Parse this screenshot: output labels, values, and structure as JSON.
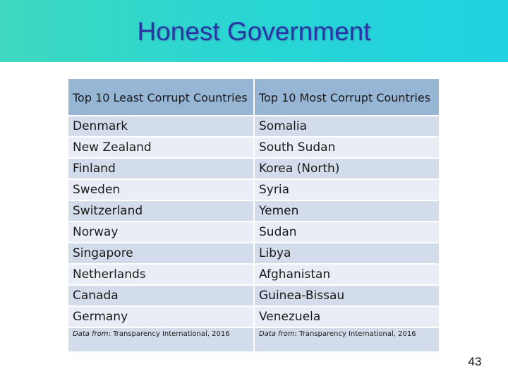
{
  "slide": {
    "title": "Honest Government",
    "page_number": "43"
  },
  "table": {
    "headers": [
      "Top 10 Least Corrupt Countries",
      "Top 10 Most Corrupt Countries"
    ],
    "rows": [
      [
        "Denmark",
        "Somalia"
      ],
      [
        "New Zealand",
        "South Sudan"
      ],
      [
        "Finland",
        "Korea (North)"
      ],
      [
        "Sweden",
        "Syria"
      ],
      [
        "Switzerland",
        "Yemen"
      ],
      [
        "Norway",
        "Sudan"
      ],
      [
        "Singapore",
        "Libya"
      ],
      [
        "Netherlands",
        "Afghanistan"
      ],
      [
        "Canada",
        "Guinea-Bissau"
      ],
      [
        "Germany",
        "Venezuela"
      ]
    ],
    "source": {
      "prefix": "Data from",
      "text": ": Transparency International, 2016"
    }
  },
  "colors": {
    "banner_start": "#3fd9c0",
    "banner_end": "#1fd2e2",
    "title": "#2a34a8",
    "header_bg": "#97b5d5",
    "row_dark": "#d2dcea",
    "row_light": "#e9eef6"
  }
}
